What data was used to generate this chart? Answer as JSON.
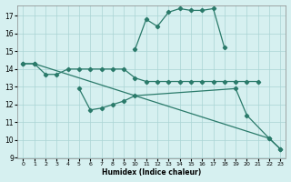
{
  "xlabel": "Humidex (Indice chaleur)",
  "bg_color": "#d6f0f0",
  "grid_color": "#aad4d4",
  "line_color": "#2a7a6a",
  "xlim": [
    -0.5,
    23.5
  ],
  "ylim": [
    9,
    17.6
  ],
  "yticks": [
    9,
    10,
    11,
    12,
    13,
    14,
    15,
    16,
    17
  ],
  "xticks": [
    0,
    1,
    2,
    3,
    4,
    5,
    6,
    7,
    8,
    9,
    10,
    11,
    12,
    13,
    14,
    15,
    16,
    17,
    18,
    19,
    20,
    21,
    22,
    23
  ],
  "series": [
    {
      "x": [
        0,
        1,
        22,
        23
      ],
      "y": [
        14.3,
        14.3,
        10.1,
        9.5
      ]
    },
    {
      "x": [
        0,
        1,
        2,
        3,
        4,
        5,
        6,
        7,
        8,
        9,
        10,
        11,
        12,
        13,
        14,
        15,
        16,
        17,
        18,
        19,
        20,
        21
      ],
      "y": [
        14.3,
        14.3,
        13.7,
        13.7,
        14.0,
        14.0,
        14.0,
        14.0,
        14.0,
        14.0,
        13.5,
        13.3,
        13.3,
        13.3,
        13.3,
        13.3,
        13.3,
        13.3,
        13.3,
        13.3,
        13.3,
        13.3
      ]
    },
    {
      "x": [
        5,
        6,
        7,
        8,
        9,
        10,
        19,
        20,
        22,
        23
      ],
      "y": [
        12.9,
        11.7,
        11.8,
        12.0,
        12.2,
        12.5,
        12.9,
        11.4,
        10.1,
        9.5
      ]
    },
    {
      "x": [
        10,
        11,
        12,
        13,
        14,
        15,
        16,
        17,
        18
      ],
      "y": [
        15.1,
        16.8,
        16.4,
        17.2,
        17.4,
        17.3,
        17.3,
        17.4,
        15.2
      ]
    }
  ]
}
